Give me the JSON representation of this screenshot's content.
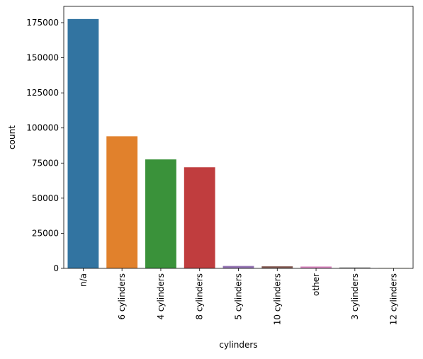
{
  "chart_data": {
    "type": "bar",
    "title": "",
    "xlabel": "cylinders",
    "ylabel": "count",
    "categories": [
      "n/a",
      "6 cylinders",
      "4 cylinders",
      "8 cylinders",
      "5 cylinders",
      "10 cylinders",
      "other",
      "3 cylinders",
      "12 cylinders"
    ],
    "values": [
      177600,
      94100,
      77600,
      72000,
      1700,
      1450,
      1300,
      650,
      200
    ],
    "colors": [
      "#3274a1",
      "#e1812c",
      "#3a923a",
      "#c03d3e",
      "#9372b2",
      "#845b53",
      "#d684bd",
      "#7f7f7f",
      "#a9aa35"
    ],
    "ylim": [
      0,
      186600
    ],
    "yticks": [
      0,
      25000,
      50000,
      75000,
      100000,
      125000,
      150000,
      175000
    ],
    "grid": false,
    "legend": "none"
  }
}
